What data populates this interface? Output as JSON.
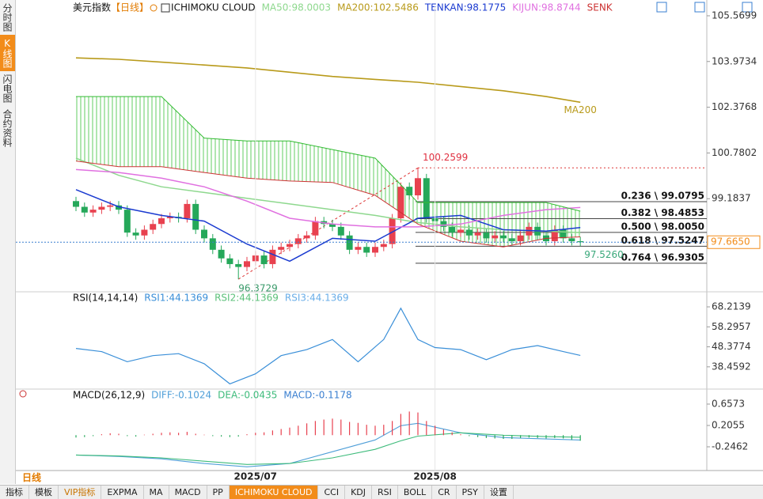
{
  "sidebar": [
    "分时图",
    "K线图",
    "闪电图",
    "合约资料"
  ],
  "sidebar_active": 1,
  "period": "日线",
  "toolbar": {
    "items": [
      "指标",
      "模板",
      "VIP指标",
      "EXPMA",
      "MA",
      "MACD",
      "PP",
      "ICHIMOKU CLOUD",
      "CCI",
      "KDJ",
      "RSI",
      "BOLL",
      "CR",
      "PSY",
      "设置"
    ],
    "active": 7,
    "highlight": 2
  },
  "chart_data": [
    {
      "type": "candlestick",
      "title": "美元指数",
      "period_tag": "【日线】",
      "indicator": "ICHIMOKU CLOUD",
      "categories": [
        null,
        null,
        null,
        null,
        null,
        null,
        null,
        null,
        null,
        null,
        null,
        null,
        null,
        null,
        null,
        null,
        null,
        null,
        null,
        null,
        null,
        "2025/07",
        null,
        null,
        null,
        null,
        null,
        null,
        null,
        null,
        null,
        null,
        null,
        null,
        null,
        null,
        null,
        null,
        null,
        null,
        null,
        null,
        "2025/08",
        null,
        null,
        null,
        null,
        null,
        null,
        null,
        null,
        null,
        null,
        null,
        null,
        null,
        null,
        null,
        null,
        null
      ],
      "open": [
        99.1,
        98.9,
        98.7,
        98.8,
        98.9,
        98.95,
        98.8,
        98.0,
        97.9,
        98.1,
        98.3,
        98.5,
        98.55,
        98.5,
        99.0,
        98.1,
        97.8,
        97.4,
        97.1,
        96.9,
        96.8,
        97.0,
        97.2,
        96.9,
        97.4,
        97.5,
        97.6,
        97.8,
        97.9,
        98.4,
        98.3,
        98.2,
        97.9,
        97.4,
        97.5,
        97.3,
        97.5,
        97.6,
        98.5,
        99.6,
        99.3,
        99.9,
        98.5,
        98.4,
        98.2,
        98.0,
        98.1,
        97.9,
        98.0,
        97.8,
        97.9,
        97.8,
        97.7,
        97.9,
        98.2,
        97.9,
        97.7,
        98.1,
        97.8,
        97.7
      ],
      "high": [
        99.25,
        99.05,
        98.95,
        99.05,
        99.1,
        99.1,
        98.95,
        98.15,
        98.25,
        98.45,
        98.65,
        98.7,
        98.7,
        99.15,
        99.15,
        98.25,
        97.95,
        97.55,
        97.25,
        97.05,
        97.15,
        97.35,
        97.35,
        97.55,
        97.65,
        97.75,
        97.95,
        98.05,
        98.55,
        98.55,
        98.45,
        98.35,
        98.05,
        97.65,
        97.65,
        97.65,
        97.75,
        98.65,
        99.75,
        99.75,
        100.2599,
        100.05,
        98.65,
        98.55,
        98.35,
        98.25,
        98.25,
        98.15,
        98.15,
        98.05,
        98.05,
        97.95,
        98.05,
        98.35,
        98.35,
        98.05,
        98.25,
        98.25,
        97.95,
        97.85
      ],
      "low": [
        98.75,
        98.55,
        98.55,
        98.65,
        98.75,
        98.65,
        97.85,
        97.75,
        97.75,
        97.95,
        98.15,
        98.35,
        98.35,
        98.35,
        97.95,
        97.65,
        97.25,
        96.95,
        96.75,
        96.3729,
        96.65,
        96.85,
        96.75,
        96.75,
        97.25,
        97.35,
        97.45,
        97.65,
        97.75,
        98.15,
        98.05,
        97.75,
        97.25,
        97.25,
        97.15,
        97.15,
        97.35,
        97.45,
        98.35,
        99.15,
        99.15,
        98.35,
        98.25,
        98.05,
        97.85,
        97.85,
        97.75,
        97.75,
        97.65,
        97.65,
        97.65,
        97.55,
        97.55,
        97.75,
        97.75,
        97.55,
        97.55,
        97.65,
        97.55,
        97.526
      ],
      "close": [
        98.9,
        98.7,
        98.8,
        98.9,
        98.95,
        98.8,
        98.0,
        97.9,
        98.1,
        98.3,
        98.5,
        98.55,
        98.5,
        99.0,
        98.1,
        97.8,
        97.4,
        97.1,
        96.9,
        96.8,
        97.0,
        97.2,
        96.9,
        97.4,
        97.5,
        97.6,
        97.8,
        97.9,
        98.4,
        98.3,
        98.2,
        97.9,
        97.4,
        97.5,
        97.3,
        97.5,
        97.6,
        98.5,
        99.6,
        99.3,
        99.9,
        98.5,
        98.4,
        98.2,
        98.0,
        98.1,
        97.9,
        98.0,
        97.8,
        97.9,
        97.8,
        97.7,
        97.9,
        98.2,
        97.9,
        97.7,
        98.1,
        97.8,
        97.7,
        97.665
      ],
      "up_color": "#e8414f",
      "down_color": "#25a85a",
      "series": [
        {
          "name": "MA50:98.0003",
          "color": "#8ed88e",
          "x": [
            0,
            5,
            10,
            15,
            20,
            25,
            30,
            35,
            40,
            45,
            50,
            55,
            59
          ],
          "values": [
            100.6,
            100.0,
            99.6,
            99.4,
            99.2,
            99.0,
            98.8,
            98.6,
            98.35,
            98.2,
            98.1,
            98.05,
            98.0
          ]
        },
        {
          "name": "MA200:102.5486",
          "color": "#b89a1a",
          "end_label": "MA200",
          "x": [
            0,
            5,
            10,
            15,
            20,
            25,
            30,
            35,
            40,
            45,
            50,
            55,
            59
          ],
          "values": [
            104.1,
            104.05,
            103.95,
            103.85,
            103.75,
            103.6,
            103.45,
            103.35,
            103.25,
            103.1,
            102.95,
            102.75,
            102.55
          ]
        },
        {
          "name": "TENKAN:98.1775",
          "color": "#1a3ad0",
          "x": [
            0,
            5,
            10,
            15,
            20,
            25,
            30,
            35,
            40,
            45,
            50,
            55,
            59
          ],
          "values": [
            99.5,
            98.9,
            98.6,
            98.4,
            97.6,
            97.0,
            97.8,
            97.7,
            98.5,
            98.6,
            98.1,
            98.05,
            98.1775
          ]
        },
        {
          "name": "KIJUN:98.8744",
          "color": "#e070e0",
          "x": [
            0,
            5,
            10,
            15,
            20,
            25,
            30,
            35,
            40,
            45,
            50,
            55,
            59
          ],
          "values": [
            100.2,
            100.1,
            99.9,
            99.6,
            99.1,
            98.5,
            98.3,
            98.2,
            98.2,
            98.3,
            98.6,
            98.8,
            98.8744
          ]
        },
        {
          "name": "SENK",
          "color": "#cc3333",
          "x": [
            0,
            5,
            10,
            15,
            20,
            25,
            30,
            35,
            40,
            45,
            50,
            55,
            59
          ],
          "values": [
            100.5,
            100.3,
            100.3,
            100.1,
            99.9,
            99.8,
            99.75,
            99.3,
            98.3,
            97.7,
            97.5,
            97.8,
            97.85
          ]
        },
        {
          "color": "#33bb33",
          "x": [
            0,
            5,
            10,
            15,
            20,
            25,
            30,
            35,
            40,
            45,
            50,
            55,
            59
          ],
          "values": [
            102.75,
            102.75,
            102.75,
            101.3,
            101.2,
            101.2,
            100.9,
            100.6,
            99.05,
            99.05,
            99.05,
            99.05,
            98.75
          ]
        }
      ],
      "cloud": [
        5,
        4
      ],
      "fib_levels": [
        {
          "value": 99.0795,
          "label": "0.236 \\ 99.0795"
        },
        {
          "value": 98.4853,
          "label": "0.382 \\ 98.4853"
        },
        {
          "value": 98.005,
          "label": "0.500 \\ 98.0050"
        },
        {
          "value": 97.5247,
          "label": "0.618 \\ 97.5247"
        },
        {
          "value": 96.9305,
          "label": "0.764 \\ 96.9305"
        }
      ],
      "annotations": [
        {
          "value": 97.526,
          "label": "97.5260"
        }
      ],
      "last_price": {
        "value": 97.665,
        "label": "97.6650"
      },
      "ylim": [
        95.96,
        105.9
      ],
      "yticks": [
        105.5699,
        103.9734,
        102.3768,
        100.7802,
        99.1837,
        97.5871
      ]
    },
    {
      "type": "line",
      "title": "RSI(14,14,14)",
      "series": [
        {
          "name": "RSI1:44.1369",
          "color": "#3a8fd8",
          "x": [
            0,
            3,
            6,
            9,
            12,
            15,
            18,
            21,
            24,
            27,
            30,
            33,
            36,
            38,
            40,
            42,
            45,
            48,
            51,
            54,
            57,
            59
          ],
          "values": [
            47.6,
            46,
            41,
            44,
            45,
            40,
            30,
            35,
            44,
            47,
            52,
            41,
            52,
            67.5,
            52,
            48,
            47,
            42,
            47,
            49,
            46,
            44.1369
          ]
        },
        {
          "name": "RSI2:44.1369",
          "color": "#5cc07a"
        },
        {
          "name": "RSI3:44.1369",
          "color": "#6aaee8"
        }
      ],
      "ylim": [
        28.2,
        74.5
      ],
      "yticks": [
        68.2139,
        58.2957,
        48.3774,
        38.4592
      ]
    },
    {
      "type": "macd",
      "title": "MACD(26,12,9)",
      "up_color": "#e8414f",
      "down_color": "#25a85a",
      "series": [
        {
          "name": "DIFF:-0.1024",
          "color": "#4f9fd8",
          "x": [
            0,
            5,
            10,
            15,
            20,
            25,
            30,
            35,
            38,
            40,
            45,
            50,
            55,
            59
          ],
          "values": [
            -0.42,
            -0.45,
            -0.5,
            -0.6,
            -0.67,
            -0.6,
            -0.35,
            -0.1,
            0.2,
            0.25,
            0.05,
            -0.05,
            -0.08,
            -0.1024
          ]
        },
        {
          "name": "DEA:-0.0435",
          "color": "#3dbb7b",
          "x": [
            0,
            5,
            10,
            15,
            20,
            25,
            30,
            35,
            38,
            40,
            45,
            50,
            55,
            59
          ],
          "values": [
            -0.42,
            -0.44,
            -0.48,
            -0.55,
            -0.62,
            -0.6,
            -0.48,
            -0.3,
            -0.12,
            -0.02,
            0.05,
            0.0,
            -0.03,
            -0.0435
          ]
        },
        {
          "name": "MACD:-0.1178",
          "color": "#3a7fd0",
          "values": [
            -0.05,
            -0.04,
            -0.02,
            0.02,
            0.04,
            0.03,
            -0.02,
            -0.03,
            0.01,
            0.03,
            0.05,
            0.06,
            0.05,
            0.07,
            0.03,
            0.01,
            -0.02,
            -0.03,
            -0.04,
            -0.03,
            0.02,
            0.05,
            0.06,
            0.1,
            0.13,
            0.16,
            0.2,
            0.25,
            0.3,
            0.33,
            0.35,
            0.33,
            0.28,
            0.26,
            0.22,
            0.2,
            0.22,
            0.3,
            0.45,
            0.5,
            0.48,
            0.3,
            0.2,
            0.12,
            0.06,
            0.02,
            -0.02,
            -0.04,
            -0.06,
            -0.07,
            -0.08,
            -0.08,
            -0.06,
            -0.05,
            -0.06,
            -0.07,
            -0.06,
            -0.07,
            -0.1,
            -0.1178
          ]
        }
      ],
      "ylim": [
        -0.698,
        0.841
      ],
      "yticks": [
        0.6573,
        0.2055,
        -0.2462
      ]
    }
  ]
}
